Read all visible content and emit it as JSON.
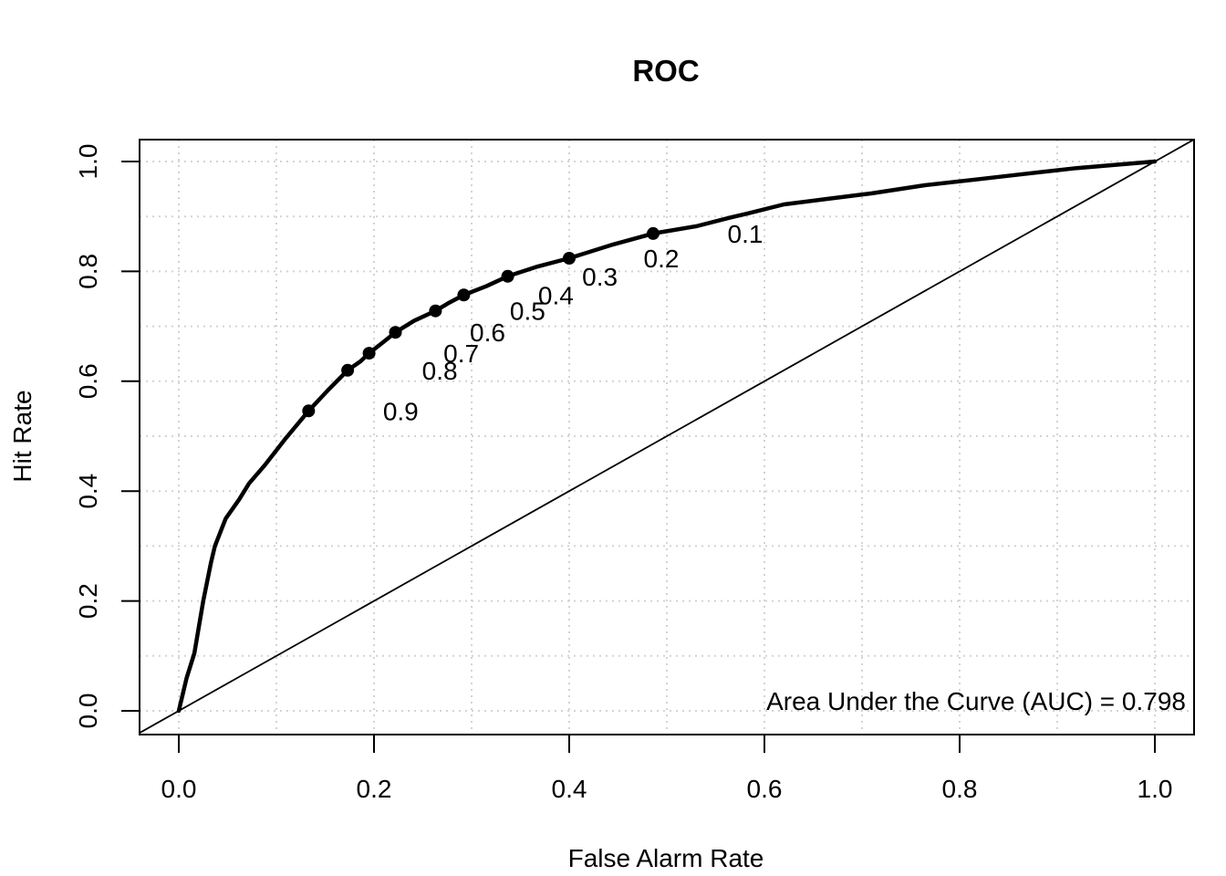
{
  "chart_data": {
    "type": "line",
    "title": "ROC",
    "xlabel": "False Alarm Rate",
    "ylabel": "Hit Rate",
    "xlim": [
      0.0,
      1.0
    ],
    "ylim": [
      0.0,
      1.0
    ],
    "x_ticks": [
      "0.0",
      "0.2",
      "0.4",
      "0.6",
      "0.8",
      "1.0"
    ],
    "y_ticks": [
      "0.0",
      "0.2",
      "0.4",
      "0.6",
      "0.8",
      "1.0"
    ],
    "grid": {
      "on": true,
      "interval": 0.1,
      "style": "dotted",
      "color": "#d3d3d3"
    },
    "annotation": "Area Under the Curve (AUC) = 0.798",
    "auc": 0.798,
    "colors": {
      "curve": "#000000",
      "diagonal": "#000000",
      "grid": "#d3d3d3",
      "text": "#000000",
      "background": "#ffffff"
    },
    "series": [
      {
        "name": "ROC curve",
        "points": [
          [
            0.0,
            0.0
          ],
          [
            0.008,
            0.06
          ],
          [
            0.016,
            0.105
          ],
          [
            0.025,
            0.2
          ],
          [
            0.033,
            0.27
          ],
          [
            0.037,
            0.3
          ],
          [
            0.048,
            0.35
          ],
          [
            0.062,
            0.385
          ],
          [
            0.072,
            0.414
          ],
          [
            0.088,
            0.447
          ],
          [
            0.11,
            0.497
          ],
          [
            0.133,
            0.546
          ],
          [
            0.152,
            0.582
          ],
          [
            0.173,
            0.62
          ],
          [
            0.186,
            0.636
          ],
          [
            0.195,
            0.651
          ],
          [
            0.21,
            0.672
          ],
          [
            0.222,
            0.689
          ],
          [
            0.241,
            0.71
          ],
          [
            0.263,
            0.728
          ],
          [
            0.277,
            0.743
          ],
          [
            0.292,
            0.757
          ],
          [
            0.315,
            0.773
          ],
          [
            0.337,
            0.791
          ],
          [
            0.366,
            0.808
          ],
          [
            0.4,
            0.824
          ],
          [
            0.445,
            0.849
          ],
          [
            0.486,
            0.869
          ],
          [
            0.53,
            0.882
          ],
          [
            0.565,
            0.898
          ],
          [
            0.582,
            0.905
          ],
          [
            0.62,
            0.922
          ],
          [
            0.665,
            0.932
          ],
          [
            0.71,
            0.942
          ],
          [
            0.765,
            0.957
          ],
          [
            0.82,
            0.968
          ],
          [
            0.87,
            0.978
          ],
          [
            0.92,
            0.988
          ],
          [
            0.96,
            0.994
          ],
          [
            1.0,
            1.0
          ]
        ]
      },
      {
        "name": "chance diagonal",
        "points": [
          [
            -0.04,
            -0.04
          ],
          [
            1.04,
            1.04
          ]
        ]
      }
    ],
    "threshold_points": [
      {
        "label": "0.1",
        "x": 0.486,
        "y": 0.869
      },
      {
        "label": "0.2",
        "x": 0.4,
        "y": 0.824
      },
      {
        "label": "0.3",
        "x": 0.337,
        "y": 0.791
      },
      {
        "label": "0.4",
        "x": 0.292,
        "y": 0.757
      },
      {
        "label": "0.5",
        "x": 0.263,
        "y": 0.728
      },
      {
        "label": "0.6",
        "x": 0.222,
        "y": 0.689
      },
      {
        "label": "0.7",
        "x": 0.195,
        "y": 0.651
      },
      {
        "label": "0.8",
        "x": 0.173,
        "y": 0.62
      },
      {
        "label": "0.9",
        "x": 0.133,
        "y": 0.546
      }
    ]
  }
}
